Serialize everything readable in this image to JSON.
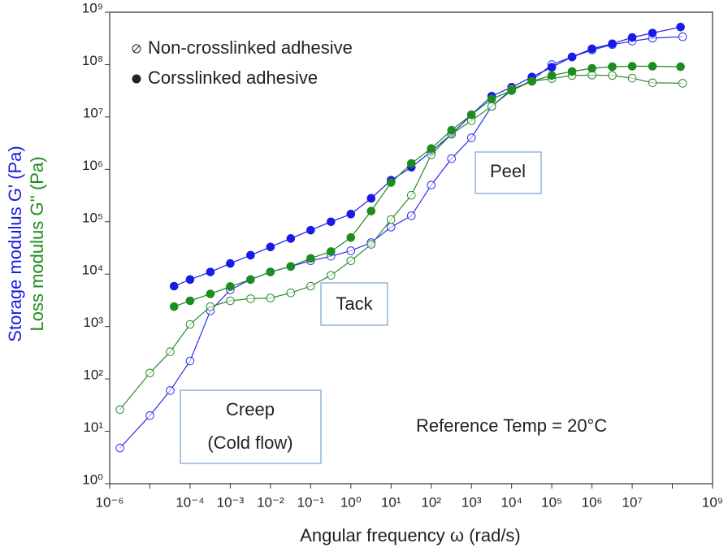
{
  "chart_data": {
    "type": "scatter",
    "x_label": "Angular frequency  ω  (rad/s)",
    "y_label": "Storage modulus  G'  (Pa)",
    "y_label_2": "Loss modulus  G''  (Pa)",
    "log_x": true,
    "log_y": true,
    "xlim": [
      1e-06,
      1000000000.0
    ],
    "ylim": [
      1,
      1000000000.0
    ],
    "xticks": [
      {
        "value": 1e-06,
        "label": "10⁻⁶"
      },
      {
        "value": 1e-05,
        "label": null
      },
      {
        "value": 0.0001,
        "label": "10⁻⁴"
      },
      {
        "value": 0.001,
        "label": "10⁻³"
      },
      {
        "value": 0.01,
        "label": "10⁻²"
      },
      {
        "value": 0.1,
        "label": "10⁻¹"
      },
      {
        "value": 1,
        "label": "10⁰"
      },
      {
        "value": 10,
        "label": "10¹"
      },
      {
        "value": 100,
        "label": "10²"
      },
      {
        "value": 1000,
        "label": "10³"
      },
      {
        "value": 10000.0,
        "label": "10⁴"
      },
      {
        "value": 100000.0,
        "label": "10⁵"
      },
      {
        "value": 1000000.0,
        "label": "10⁶"
      },
      {
        "value": 10000000.0,
        "label": "10⁷"
      },
      {
        "value": 100000000.0,
        "label": null
      },
      {
        "value": 1000000000.0,
        "label": "10⁹"
      }
    ],
    "yticks": [
      {
        "value": 1,
        "label": "10⁰"
      },
      {
        "value": 10,
        "label": "10¹"
      },
      {
        "value": 100,
        "label": "10²"
      },
      {
        "value": 1000,
        "label": "10³"
      },
      {
        "value": 10000.0,
        "label": "10⁴"
      },
      {
        "value": 100000.0,
        "label": "10⁵"
      },
      {
        "value": 1000000.0,
        "label": "10⁶"
      },
      {
        "value": 10000000.0,
        "label": "10⁷"
      },
      {
        "value": 100000000.0,
        "label": "10⁸"
      },
      {
        "value": 1000000000.0,
        "label": "10⁹"
      }
    ],
    "legend_position": "upper left",
    "series": [
      {
        "name": "Non-crosslinked adhesive",
        "color": "#2b2bf0",
        "marker": "open",
        "x": [
          1.8e-06,
          1e-05,
          3.2e-05,
          0.0001,
          0.00032,
          0.001,
          0.0032,
          0.01,
          0.032,
          0.1,
          0.32,
          1,
          3.2,
          10,
          32,
          100,
          320,
          1000,
          3200,
          10000.0,
          32000.0,
          100000.0,
          320000.0,
          1000000.0,
          3200000.0,
          10000000.0,
          32000000.0,
          180000000.0
        ],
        "values": [
          4.8,
          20,
          60,
          220,
          2000,
          5000,
          7900,
          11000,
          14000,
          18000,
          22000,
          28000,
          40000,
          79000,
          130000,
          500000,
          1600000.0,
          4000000.0,
          16000000.0,
          32000000.0,
          50000000.0,
          100000000.0,
          140000000.0,
          190000000.0,
          240000000.0,
          280000000.0,
          320000000.0,
          340000000.0
        ]
      },
      {
        "name": "Corsslinked adhesive",
        "color": "#1a1ae6",
        "marker": "filled",
        "x": [
          4e-05,
          0.0001,
          0.00032,
          0.001,
          0.0032,
          0.01,
          0.032,
          0.1,
          0.32,
          1,
          3.2,
          10,
          32,
          100,
          320,
          1000,
          3200,
          10000.0,
          32000.0,
          100000.0,
          320000.0,
          1000000.0,
          3200000.0,
          10000000.0,
          32000000.0,
          160000000.0
        ],
        "values": [
          5900,
          7900,
          11000,
          16000,
          23000,
          33000,
          48000,
          69000,
          100000.0,
          140000.0,
          280000.0,
          620000.0,
          1100000.0,
          2200000.0,
          4700000.0,
          11000000.0,
          25000000.0,
          37000000.0,
          58000000.0,
          89000000.0,
          140000000.0,
          200000000.0,
          250000000.0,
          330000000.0,
          400000000.0,
          520000000.0
        ]
      },
      {
        "name": "Non-crosslinked adhesive",
        "color": "#2a8a2a",
        "marker": "open",
        "x": [
          1.8e-06,
          1e-05,
          3.2e-05,
          0.0001,
          0.00032,
          0.001,
          0.0032,
          0.01,
          0.032,
          0.1,
          0.32,
          1,
          3.2,
          10,
          32,
          100,
          320,
          1000,
          3200,
          10000.0,
          32000.0,
          100000.0,
          320000.0,
          1000000.0,
          3200000.0,
          10000000.0,
          32000000.0,
          180000000.0
        ],
        "values": [
          26,
          130,
          330,
          1100,
          2400,
          3100,
          3400,
          3500,
          4400,
          5900,
          9500,
          18000,
          37000,
          110000,
          320000,
          1900000.0,
          4700000.0,
          8500000.0,
          16000000.0,
          34000000.0,
          48000000.0,
          54000000.0,
          62000000.0,
          63000000.0,
          62000000.0,
          55000000.0,
          45000000.0,
          44000000.0
        ]
      },
      {
        "name": "Corsslinked adhesive",
        "color": "#1e8c1e",
        "marker": "filled",
        "x": [
          4e-05,
          0.0001,
          0.00032,
          0.001,
          0.0032,
          0.01,
          0.032,
          0.1,
          0.32,
          1,
          3.2,
          10,
          32,
          100,
          320,
          1000,
          3200,
          10000.0,
          32000.0,
          100000.0,
          320000.0,
          1000000.0,
          3200000.0,
          10000000.0,
          32000000.0,
          160000000.0
        ],
        "values": [
          2400,
          3100,
          4200,
          5800,
          7900,
          11000,
          14000,
          20000,
          27000,
          50000,
          160000,
          560000,
          1300000.0,
          2500000.0,
          5600000.0,
          11000000.0,
          22000000.0,
          32000000.0,
          48000000.0,
          62000000.0,
          74000000.0,
          85000000.0,
          91000000.0,
          93000000.0,
          93000000.0,
          91000000.0
        ]
      }
    ],
    "annotations": {
      "peel": "Peel",
      "tack": "Tack",
      "creep": [
        "Creep",
        "(Cold flow)"
      ],
      "reference": "Reference Temp = 20°C"
    }
  }
}
